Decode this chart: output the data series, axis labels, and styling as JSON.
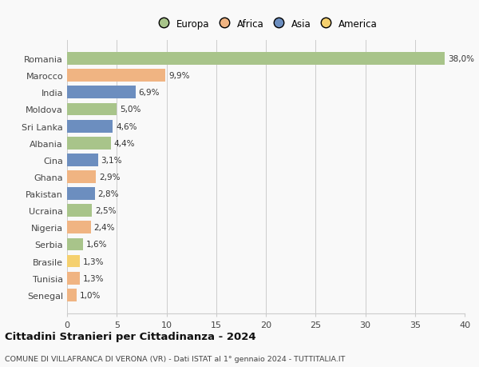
{
  "countries": [
    "Romania",
    "Marocco",
    "India",
    "Moldova",
    "Sri Lanka",
    "Albania",
    "Cina",
    "Ghana",
    "Pakistan",
    "Ucraina",
    "Nigeria",
    "Serbia",
    "Brasile",
    "Tunisia",
    "Senegal"
  ],
  "values": [
    38.0,
    9.9,
    6.9,
    5.0,
    4.6,
    4.4,
    3.1,
    2.9,
    2.8,
    2.5,
    2.4,
    1.6,
    1.3,
    1.3,
    1.0
  ],
  "labels": [
    "38,0%",
    "9,9%",
    "6,9%",
    "5,0%",
    "4,6%",
    "4,4%",
    "3,1%",
    "2,9%",
    "2,8%",
    "2,5%",
    "2,4%",
    "1,6%",
    "1,3%",
    "1,3%",
    "1,0%"
  ],
  "continents": [
    "Europa",
    "Africa",
    "Asia",
    "Europa",
    "Asia",
    "Europa",
    "Asia",
    "Africa",
    "Asia",
    "Europa",
    "Africa",
    "Europa",
    "America",
    "Africa",
    "Africa"
  ],
  "continent_colors": {
    "Europa": "#a8c48a",
    "Africa": "#f0b482",
    "Asia": "#6c8ebf",
    "America": "#f5d06e"
  },
  "legend_entries": [
    "Europa",
    "Africa",
    "Asia",
    "America"
  ],
  "legend_colors": [
    "#a8c48a",
    "#f0b482",
    "#6c8ebf",
    "#f5d06e"
  ],
  "xlim": [
    0,
    40
  ],
  "xticks": [
    0,
    5,
    10,
    15,
    20,
    25,
    30,
    35,
    40
  ],
  "title": "Cittadini Stranieri per Cittadinanza - 2024",
  "subtitle": "COMUNE DI VILLAFRANCA DI VERONA (VR) - Dati ISTAT al 1° gennaio 2024 - TUTTITALIA.IT",
  "background_color": "#f9f9f9",
  "grid_color": "#cccccc",
  "bar_height": 0.75
}
